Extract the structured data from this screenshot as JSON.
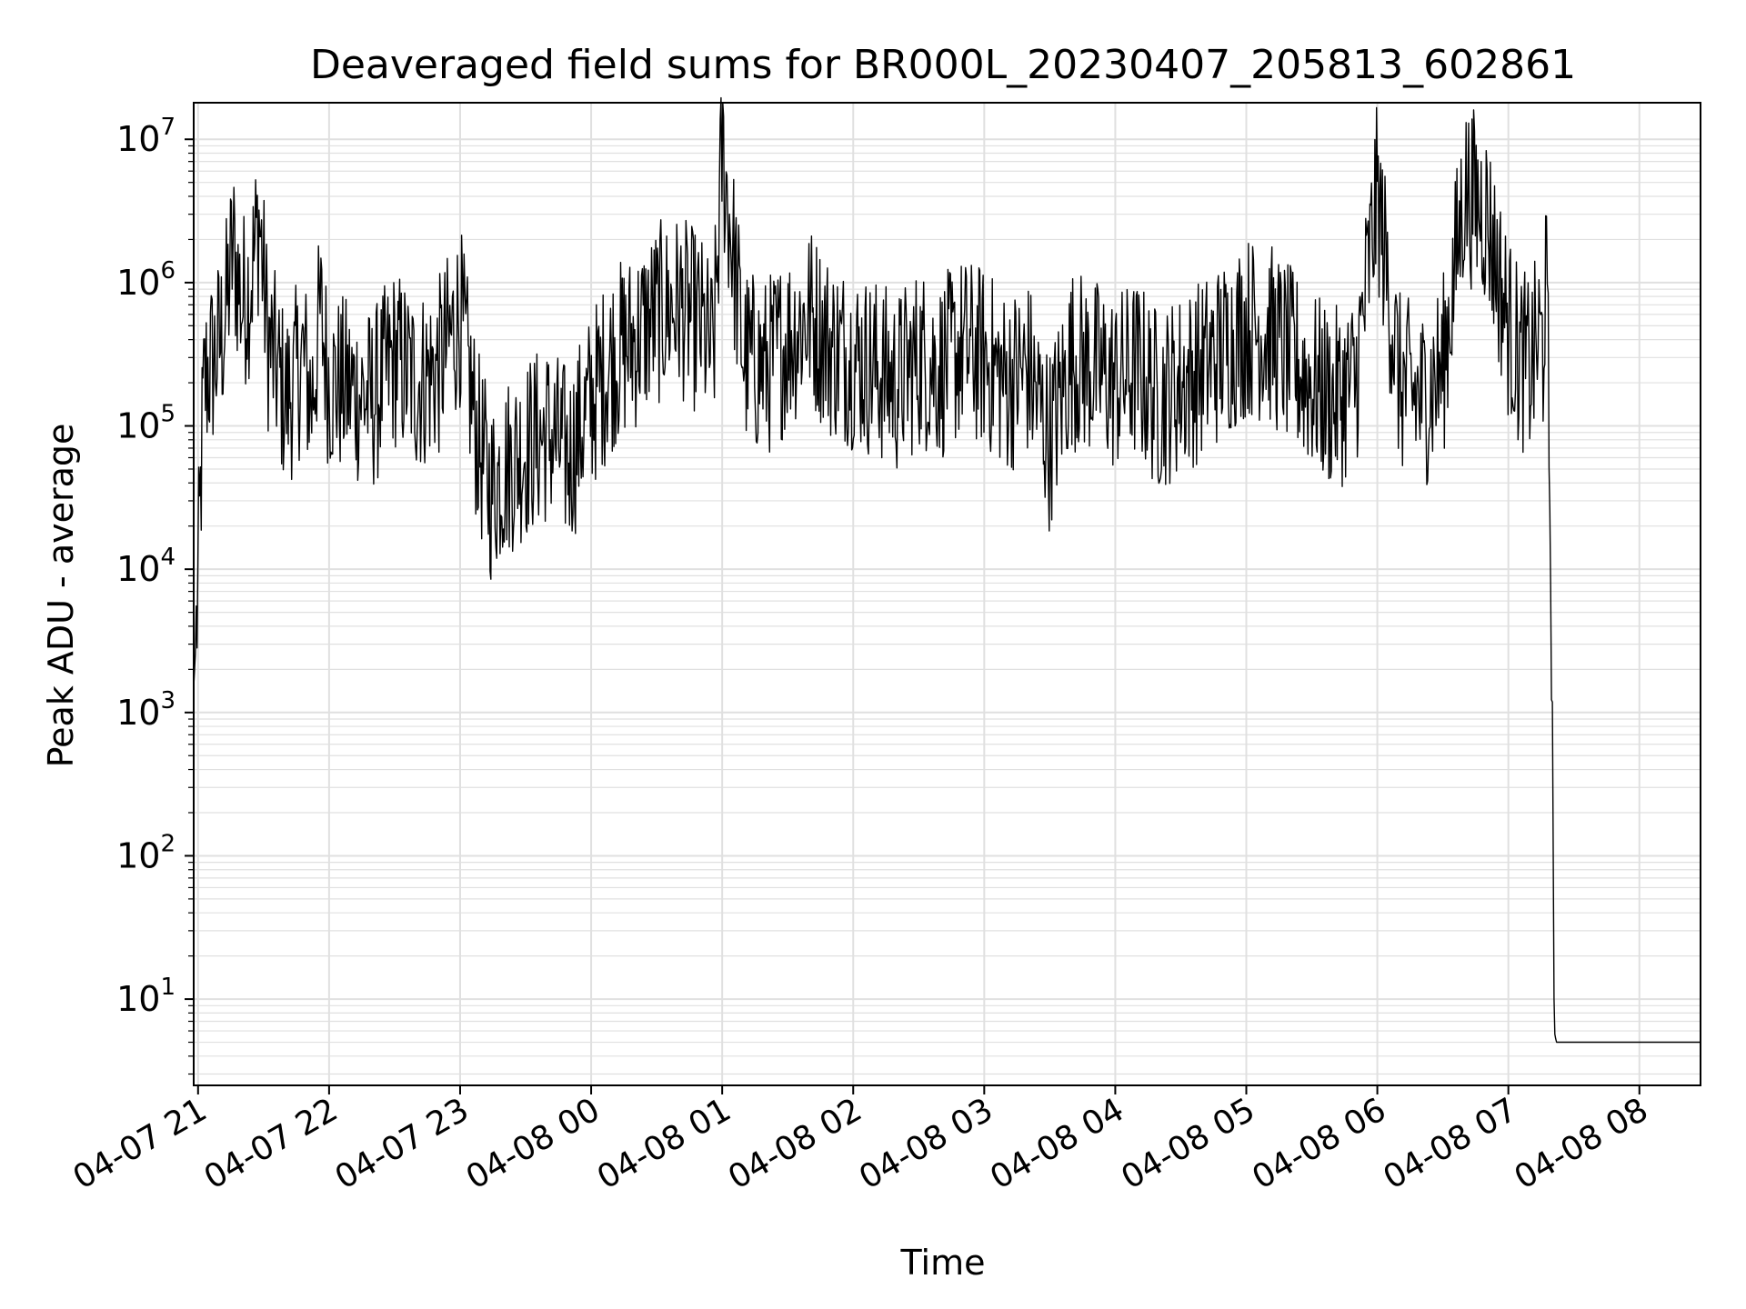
{
  "chart_data": {
    "type": "line",
    "title": "Deaveraged field sums for BR000L_20230407_205813_602861",
    "xlabel": "Time",
    "ylabel": "Peak ADU - average",
    "yscale": "log",
    "ylim": [
      2.5,
      18000000
    ],
    "xlim": [
      "2023-04-07 20:58",
      "2023-04-08 08:28"
    ],
    "grid": true,
    "line_color": "#000000",
    "grid_color": "#e0e0e0",
    "x_ticks": [
      "04-07 21",
      "04-07 22",
      "04-07 23",
      "04-08 00",
      "04-08 01",
      "04-08 02",
      "04-08 03",
      "04-08 04",
      "04-08 05",
      "04-08 06",
      "04-08 07",
      "04-08 08"
    ],
    "x_tick_times": [
      "2023-04-07 21:00",
      "2023-04-07 22:00",
      "2023-04-07 23:00",
      "2023-04-08 00:00",
      "2023-04-08 01:00",
      "2023-04-08 02:00",
      "2023-04-08 03:00",
      "2023-04-08 04:00",
      "2023-04-08 05:00",
      "2023-04-08 06:00",
      "2023-04-08 07:00",
      "2023-04-08 08:00"
    ],
    "y_ticks": [
      {
        "value": 10,
        "base": "10",
        "exp": "1"
      },
      {
        "value": 100,
        "base": "10",
        "exp": "2"
      },
      {
        "value": 1000,
        "base": "10",
        "exp": "3"
      },
      {
        "value": 10000,
        "base": "10",
        "exp": "4"
      },
      {
        "value": 100000,
        "base": "10",
        "exp": "5"
      },
      {
        "value": 1000000,
        "base": "10",
        "exp": "6"
      },
      {
        "value": 10000000,
        "base": "10",
        "exp": "7"
      }
    ],
    "series": [
      {
        "x": [
          "2023-04-07 20:58",
          "2023-04-07 20:59",
          "2023-04-07 21:00",
          "2023-04-07 21:02",
          "2023-04-07 21:03",
          "2023-04-07 21:05",
          "2023-04-07 21:08",
          "2023-04-07 21:12",
          "2023-04-07 21:16",
          "2023-04-07 21:20",
          "2023-04-07 21:24",
          "2023-04-07 21:28",
          "2023-04-07 21:32",
          "2023-04-07 21:36",
          "2023-04-07 21:40",
          "2023-04-07 21:44",
          "2023-04-07 21:48",
          "2023-04-07 21:52",
          "2023-04-07 21:56",
          "2023-04-07 22:00",
          "2023-04-07 22:10",
          "2023-04-07 22:20",
          "2023-04-07 22:30",
          "2023-04-07 22:40",
          "2023-04-07 22:50",
          "2023-04-07 23:00",
          "2023-04-07 23:08",
          "2023-04-07 23:14",
          "2023-04-07 23:20",
          "2023-04-07 23:30",
          "2023-04-07 23:40",
          "2023-04-07 23:50",
          "2023-04-08 00:00",
          "2023-04-08 00:10",
          "2023-04-08 00:20",
          "2023-04-08 00:30",
          "2023-04-08 00:40",
          "2023-04-08 00:50",
          "2023-04-08 00:56",
          "2023-04-08 01:00",
          "2023-04-08 01:10",
          "2023-04-08 01:20",
          "2023-04-08 01:30",
          "2023-04-08 01:40",
          "2023-04-08 01:50",
          "2023-04-08 02:00",
          "2023-04-08 02:10",
          "2023-04-08 02:20",
          "2023-04-08 02:30",
          "2023-04-08 02:40",
          "2023-04-08 02:50",
          "2023-04-08 03:00",
          "2023-04-08 03:10",
          "2023-04-08 03:20",
          "2023-04-08 03:30",
          "2023-04-08 03:40",
          "2023-04-08 03:50",
          "2023-04-08 04:00",
          "2023-04-08 04:10",
          "2023-04-08 04:20",
          "2023-04-08 04:30",
          "2023-04-08 04:40",
          "2023-04-08 04:50",
          "2023-04-08 05:00",
          "2023-04-08 05:10",
          "2023-04-08 05:20",
          "2023-04-08 05:30",
          "2023-04-08 05:40",
          "2023-04-08 05:50",
          "2023-04-08 06:00",
          "2023-04-08 06:10",
          "2023-04-08 06:20",
          "2023-04-08 06:30",
          "2023-04-08 06:40",
          "2023-04-08 06:50",
          "2023-04-08 07:00",
          "2023-04-08 07:05",
          "2023-04-08 07:10",
          "2023-04-08 07:14",
          "2023-04-08 07:16",
          "2023-04-08 07:17",
          "2023-04-08 07:18",
          "2023-04-08 07:19",
          "2023-04-08 07:20",
          "2023-04-08 07:21",
          "2023-04-08 07:22",
          "2023-04-08 07:24",
          "2023-04-08 07:26",
          "2023-04-08 07:28"
        ],
        "y": [
          1500,
          3000,
          8000,
          100000,
          200000,
          250000,
          300000,
          500000,
          1800000,
          700000,
          1000000,
          2800000,
          400000,
          250000,
          150000,
          200000,
          300000,
          150000,
          600000,
          200000,
          180000,
          150000,
          300000,
          200000,
          250000,
          600000,
          80000,
          35000,
          50000,
          70000,
          90000,
          60000,
          150000,
          300000,
          400000,
          600000,
          700000,
          500000,
          300000,
          8500000,
          300000,
          250000,
          400000,
          600000,
          350000,
          300000,
          250000,
          200000,
          300000,
          250000,
          350000,
          300000,
          200000,
          250000,
          80000,
          300000,
          250000,
          200000,
          250000,
          150000,
          200000,
          250000,
          350000,
          500000,
          450000,
          300000,
          200000,
          150000,
          200000,
          4200000,
          200000,
          150000,
          250000,
          4500000,
          3000000,
          500000,
          300000,
          250000,
          400000,
          350000,
          1200000,
          400000,
          30000,
          3000,
          6,
          5,
          5,
          5,
          5
        ],
        "noise": true
      }
    ]
  }
}
